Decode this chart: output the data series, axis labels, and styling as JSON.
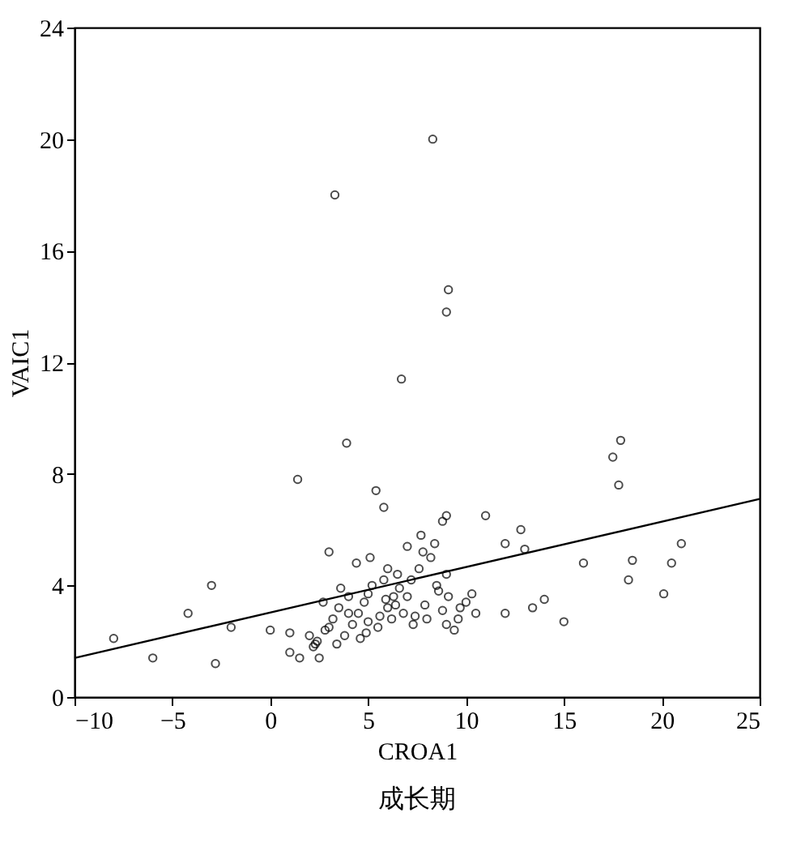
{
  "chart_data": {
    "type": "scatter",
    "xlabel": "CROA1",
    "ylabel": "VAIC1",
    "annotations": [
      "成长期"
    ],
    "xlim": [
      -10,
      25
    ],
    "ylim": [
      0,
      24
    ],
    "xticks": [
      -10,
      -5,
      0,
      5,
      10,
      15,
      20,
      25
    ],
    "yticks": [
      0,
      4,
      8,
      12,
      16,
      20,
      24
    ],
    "grid": false,
    "series": [
      {
        "color": "#000000",
        "marker": "circle",
        "x": [
          8.3,
          3.3,
          9.1,
          9.0,
          6.7,
          3.9,
          1.4,
          17.9,
          17.5,
          17.8,
          5.4,
          5.8,
          9.0,
          8.8,
          11.0,
          12.8,
          13.0,
          12.0,
          16.0,
          18.5,
          18.3,
          20.5,
          21.0,
          20.1,
          15.0,
          14.0,
          13.4,
          12.0,
          -8.0,
          -6.0,
          -4.2,
          -3.0,
          -2.8,
          -2.0,
          0.0,
          1.0,
          1.5,
          1.0,
          2.5,
          3.0,
          2.7,
          2.0,
          2.2,
          2.4,
          2.8,
          3.2,
          3.5,
          3.8,
          4.0,
          4.2,
          4.5,
          4.8,
          5.0,
          5.2,
          5.5,
          5.8,
          6.0,
          6.2,
          6.5,
          6.8,
          7.0,
          7.3,
          7.6,
          7.9,
          8.2,
          8.5,
          8.8,
          9.1,
          9.4,
          9.7,
          10.0,
          10.3,
          3.6,
          4.4,
          5.1,
          5.9,
          6.6,
          7.2,
          7.8,
          8.4,
          9.0,
          9.6,
          10.5,
          3.0,
          4.0,
          5.0,
          6.0,
          7.0,
          8.0,
          9.0,
          4.6,
          5.6,
          6.4,
          7.4,
          8.6,
          2.3,
          3.4,
          4.9,
          6.3,
          7.7
        ],
        "values": [
          20.0,
          18.0,
          14.6,
          13.8,
          11.4,
          9.1,
          7.8,
          9.2,
          8.6,
          7.6,
          7.4,
          6.8,
          6.5,
          6.3,
          6.5,
          6.0,
          5.3,
          5.5,
          4.8,
          4.9,
          4.2,
          4.8,
          5.5,
          3.7,
          2.7,
          3.5,
          3.2,
          3.0,
          2.1,
          1.4,
          3.0,
          4.0,
          1.2,
          2.5,
          2.4,
          2.3,
          1.4,
          1.6,
          1.4,
          5.2,
          3.4,
          2.2,
          1.8,
          2.0,
          2.4,
          2.8,
          3.2,
          2.2,
          3.6,
          2.6,
          3.0,
          3.4,
          2.7,
          4.0,
          2.5,
          4.2,
          3.2,
          2.8,
          4.4,
          3.0,
          3.6,
          2.6,
          4.6,
          3.3,
          5.0,
          4.0,
          3.1,
          3.6,
          2.4,
          3.2,
          3.4,
          3.7,
          3.9,
          4.8,
          5.0,
          3.5,
          3.9,
          4.2,
          5.2,
          5.5,
          4.4,
          2.8,
          3.0,
          2.5,
          3.0,
          3.7,
          4.6,
          5.4,
          2.8,
          2.6,
          2.1,
          2.9,
          3.3,
          2.9,
          3.8,
          1.9,
          1.9,
          2.3,
          3.6,
          5.8
        ]
      },
      {
        "type": "line",
        "marker": "none",
        "color": "#000000",
        "x": [
          -10,
          25
        ],
        "values": [
          1.4,
          7.1
        ]
      }
    ]
  }
}
